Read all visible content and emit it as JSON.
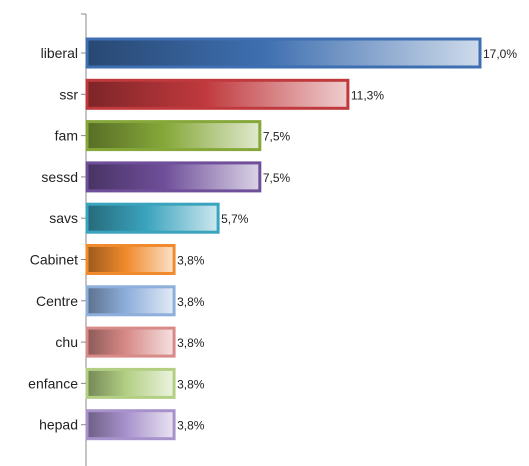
{
  "chart_data": {
    "type": "bar",
    "orientation": "horizontal",
    "title": "",
    "xlabel": "",
    "ylabel": "",
    "categories": [
      "liberal",
      "ssr",
      "fam",
      "sessd",
      "savs",
      "Cabinet",
      "Centre",
      "chu",
      "enfance",
      "hepad"
    ],
    "values": [
      17.0,
      11.3,
      7.5,
      7.5,
      5.7,
      3.8,
      3.8,
      3.8,
      3.8,
      3.8
    ],
    "value_labels": [
      "17,0%",
      "11,3%",
      "7,5%",
      "7,5%",
      "5,7%",
      "3,8%",
      "3,8%",
      "3,8%",
      "3,8%",
      "3,8%"
    ],
    "xlim": [
      0,
      17.0
    ],
    "grid": false,
    "legend": "none",
    "colors": [
      "#3e6fb0",
      "#c0393d",
      "#86a83a",
      "#6f4f9a",
      "#3aa3bd",
      "#f08a2c",
      "#8eaedb",
      "#d88a88",
      "#b3cf84",
      "#a892cc"
    ]
  }
}
